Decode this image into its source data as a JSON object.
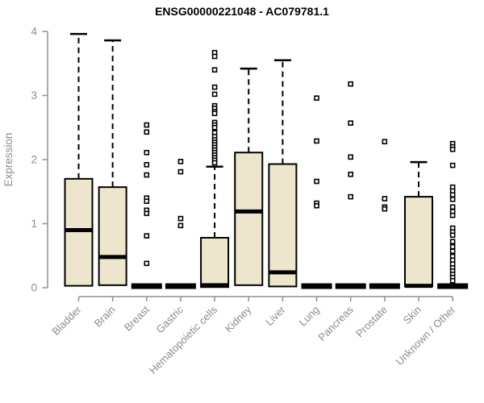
{
  "chart_data": {
    "type": "boxplot",
    "title": "ENSG00000221048 - AC079781.1",
    "ylabel": "Expression",
    "ylim": [
      0,
      4
    ],
    "yticks": [
      0,
      1,
      2,
      3,
      4
    ],
    "grid": false,
    "legend": false,
    "categories": [
      "Bladder",
      "Brain",
      "Breast",
      "Gastric",
      "Hematopoietic cells",
      "Kidney",
      "Liver",
      "Lung",
      "Pancreas",
      "Prostate",
      "Skin",
      "Unknown / Other"
    ],
    "series": [
      {
        "category": "Bladder",
        "whisker_low": 0.02,
        "q1": 0.03,
        "median": 0.9,
        "q3": 1.7,
        "whisker_high": 3.96,
        "outliers": []
      },
      {
        "category": "Brain",
        "whisker_low": 0.02,
        "q1": 0.04,
        "median": 0.48,
        "q3": 1.57,
        "whisker_high": 3.86,
        "outliers": []
      },
      {
        "category": "Breast",
        "whisker_low": 0,
        "q1": 0,
        "median": 0.01,
        "q3": 0.02,
        "whisker_high": 0.04,
        "outliers": [
          2.54,
          2.43,
          2.11,
          1.92,
          1.76,
          1.4,
          1.35,
          1.21,
          1.16,
          0.81,
          0.38
        ]
      },
      {
        "category": "Gastric",
        "whisker_low": 0,
        "q1": 0,
        "median": 0.01,
        "q3": 0.02,
        "whisker_high": 0.04,
        "outliers": [
          1.97,
          1.81,
          1.08,
          0.97
        ]
      },
      {
        "category": "Hematopoietic cells",
        "whisker_low": 0,
        "q1": 0.01,
        "median": 0.04,
        "q3": 0.78,
        "whisker_high": 1.89,
        "outliers": [
          3.67,
          3.61,
          3.4,
          3.13,
          3.02,
          2.84,
          2.8,
          2.75,
          2.72,
          2.58,
          2.54,
          2.5,
          2.42,
          2.36,
          2.31,
          2.27,
          2.23,
          2.19,
          2.15,
          2.11,
          2.07,
          2.03,
          1.99,
          1.95
        ]
      },
      {
        "category": "Kidney",
        "whisker_low": 0.02,
        "q1": 0.04,
        "median": 1.19,
        "q3": 2.11,
        "whisker_high": 3.42,
        "outliers": []
      },
      {
        "category": "Liver",
        "whisker_low": 0.01,
        "q1": 0.02,
        "median": 0.24,
        "q3": 1.93,
        "whisker_high": 3.55,
        "outliers": []
      },
      {
        "category": "Lung",
        "whisker_low": 0,
        "q1": 0,
        "median": 0.01,
        "q3": 0.02,
        "whisker_high": 0.04,
        "outliers": [
          2.96,
          2.29,
          1.66,
          1.32,
          1.28
        ]
      },
      {
        "category": "Pancreas",
        "whisker_low": 0,
        "q1": 0,
        "median": 0.01,
        "q3": 0.02,
        "whisker_high": 0.04,
        "outliers": [
          3.18,
          2.57,
          2.04,
          1.77,
          1.42
        ]
      },
      {
        "category": "Prostate",
        "whisker_low": 0,
        "q1": 0,
        "median": 0.01,
        "q3": 0.02,
        "whisker_high": 0.04,
        "outliers": [
          2.28,
          1.39,
          1.26,
          1.23
        ]
      },
      {
        "category": "Skin",
        "whisker_low": 0.01,
        "q1": 0.02,
        "median": 0.03,
        "q3": 1.42,
        "whisker_high": 1.96,
        "outliers": []
      },
      {
        "category": "Unknown / Other",
        "whisker_low": 0,
        "q1": 0,
        "median": 0.01,
        "q3": 0.02,
        "whisker_high": 0.04,
        "outliers": [
          2.25,
          2.2,
          2.16,
          1.91,
          1.57,
          1.51,
          1.45,
          1.38,
          1.26,
          1.19,
          1.13,
          0.93,
          0.87,
          0.82,
          0.72,
          0.64,
          0.57,
          0.49,
          0.43,
          0.37,
          0.31,
          0.26,
          0.21,
          0.16,
          0.11
        ]
      }
    ],
    "colors": {
      "box_fill": "#EDE6CD",
      "box_stroke": "#000000",
      "median": "#000000",
      "axis": "#909090",
      "tick_text": "#8c8c8c",
      "title": "#000000",
      "background": "#ffffff"
    }
  }
}
